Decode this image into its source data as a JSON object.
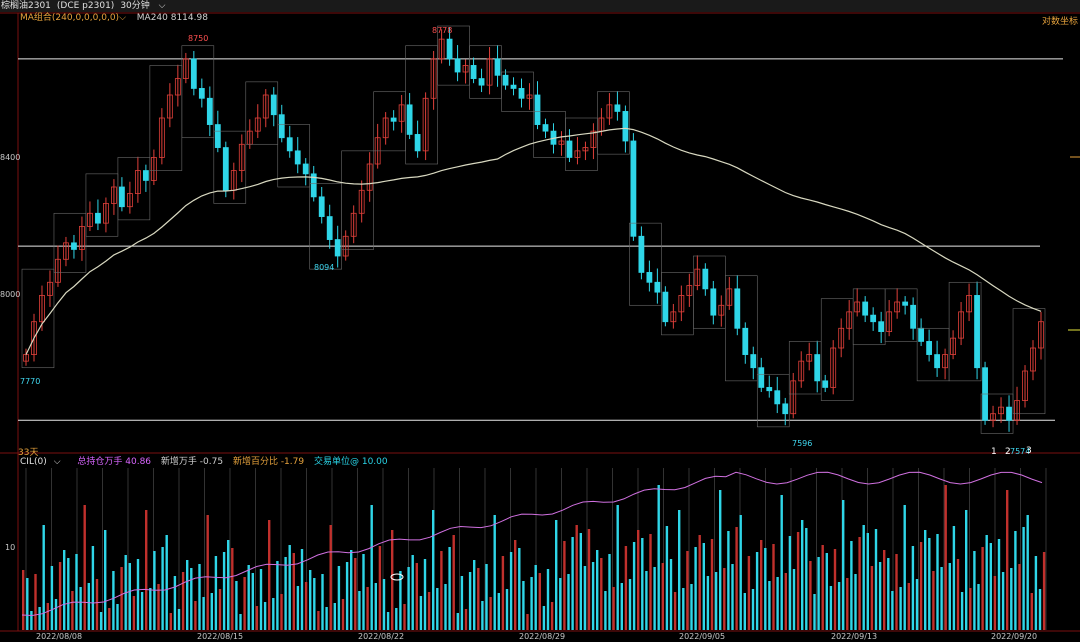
{
  "header": {
    "instrument": "棕榈油2301",
    "code": "(DCE p2301)",
    "period": "30分钟",
    "period_chevron_icon": "chevron-down-icon"
  },
  "ma_legend": {
    "label": "MA组合(240,0,0,0,0,0)",
    "value": "MA240 8114.98"
  },
  "coord_mode": "对数坐标",
  "days_label": "33天",
  "lower_legend": {
    "cil": "CIL(0)",
    "total_pos": "总持仓万手 40.86",
    "new_pos": "新增万手 -0.75",
    "new_pct": "新增百分比 -1.79",
    "unit": "交易单位@ 10.00"
  },
  "price_axis": {
    "labels": [
      "8400",
      "8000"
    ]
  },
  "volume_axis": {
    "labels": [
      "10"
    ]
  },
  "annotations": {
    "high1": "8750",
    "high2": "8778",
    "low_mid": "8094",
    "low_left": "7770",
    "low_right": "7596",
    "low_end": "7574",
    "wave1": "1",
    "wave2": "2",
    "wave3": "3"
  },
  "date_labels": [
    "2022/08/08",
    "2022/08/15",
    "2022/08/22",
    "2022/08/29",
    "2022/09/05",
    "2022/09/13",
    "2022/09/20"
  ],
  "colors": {
    "up": "#e0403a",
    "down": "#2fd6e8",
    "ma": "#d8d8c0",
    "oi": "#d070e0",
    "grid": "#3a3a3a",
    "frame": "#7a1010"
  },
  "chart_data": {
    "type": "candlestick",
    "price_range": [
      7540,
      8800
    ],
    "horizontal_levels": [
      8700,
      8130,
      7600
    ],
    "candles_close": [
      7800,
      7900,
      7980,
      8020,
      8090,
      8140,
      8120,
      8190,
      8230,
      8200,
      8260,
      8310,
      8250,
      8290,
      8360,
      8330,
      8400,
      8520,
      8590,
      8640,
      8700,
      8610,
      8580,
      8500,
      8430,
      8300,
      8360,
      8440,
      8480,
      8520,
      8590,
      8530,
      8460,
      8420,
      8380,
      8350,
      8280,
      8220,
      8150,
      8100,
      8160,
      8230,
      8300,
      8380,
      8460,
      8520,
      8510,
      8560,
      8470,
      8420,
      8580,
      8700,
      8760,
      8700,
      8660,
      8680,
      8640,
      8620,
      8700,
      8650,
      8620,
      8610,
      8580,
      8590,
      8500,
      8480,
      8440,
      8450,
      8400,
      8420,
      8430,
      8480,
      8520,
      8560,
      8540,
      8450,
      8160,
      8050,
      8020,
      7990,
      7900,
      7930,
      7980,
      8010,
      8060,
      8000,
      7920,
      7950,
      8000,
      7880,
      7800,
      7760,
      7700,
      7690,
      7650,
      7620,
      7720,
      7780,
      7800,
      7720,
      7700,
      7820,
      7880,
      7930,
      7960,
      7920,
      7900,
      7870,
      7930,
      7960,
      7950,
      7880,
      7840,
      7800,
      7760,
      7800,
      7850,
      7930,
      7980,
      7760,
      7600,
      7620,
      7640,
      7600,
      7660,
      7750,
      7820,
      7900
    ],
    "ma240": "from_series"
  }
}
